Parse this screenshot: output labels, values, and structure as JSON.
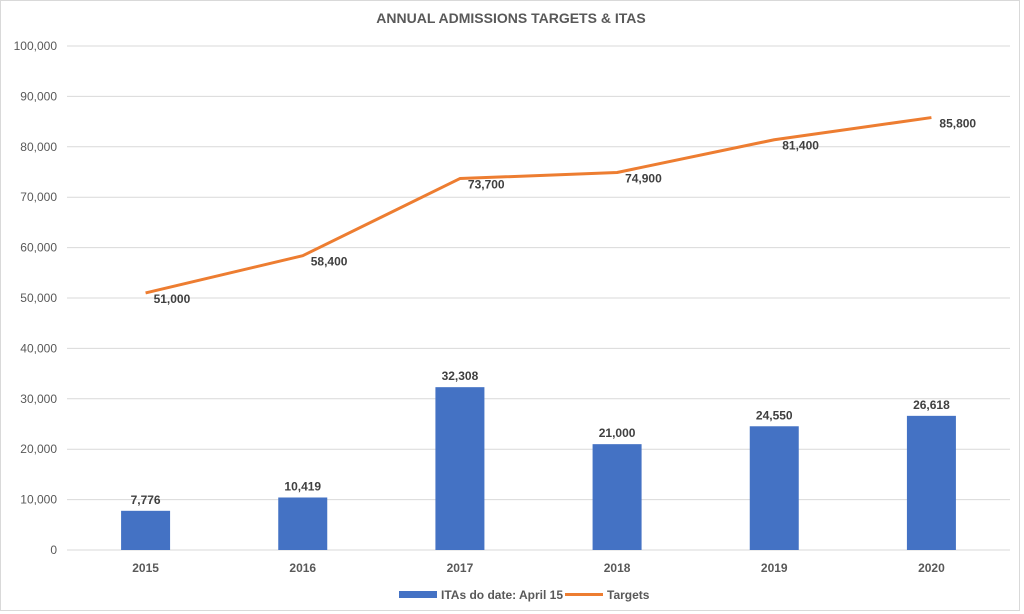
{
  "chart_data": {
    "type": "bar",
    "title": "ANNUAL ADMISSIONS TARGETS & ITAS",
    "xlabel": "",
    "ylabel": "",
    "ylim": [
      0,
      100000
    ],
    "y_ticks": [
      0,
      10000,
      20000,
      30000,
      40000,
      50000,
      60000,
      70000,
      80000,
      90000,
      100000
    ],
    "y_tick_labels": [
      "0",
      "10,000",
      "20,000",
      "30,000",
      "40,000",
      "50,000",
      "60,000",
      "70,000",
      "80,000",
      "90,000",
      "100,000"
    ],
    "grid": true,
    "categories": [
      "2015",
      "2016",
      "2017",
      "2018",
      "2019",
      "2020"
    ],
    "series": [
      {
        "name": "ITAs do date: April 15",
        "type": "bar",
        "color": "#4472C4",
        "values": [
          7776,
          10419,
          32308,
          21000,
          24550,
          26618
        ],
        "labels": [
          "7,776",
          "10,419",
          "32,308",
          "21,000",
          "24,550",
          "26,618"
        ]
      },
      {
        "name": "Targets",
        "type": "line",
        "color": "#ED7D31",
        "values": [
          51000,
          58400,
          73700,
          74900,
          81400,
          85800
        ],
        "labels": [
          "51,000",
          "58,400",
          "73,700",
          "74,900",
          "81,400",
          "85,800"
        ]
      }
    ],
    "legend_position": "bottom"
  }
}
